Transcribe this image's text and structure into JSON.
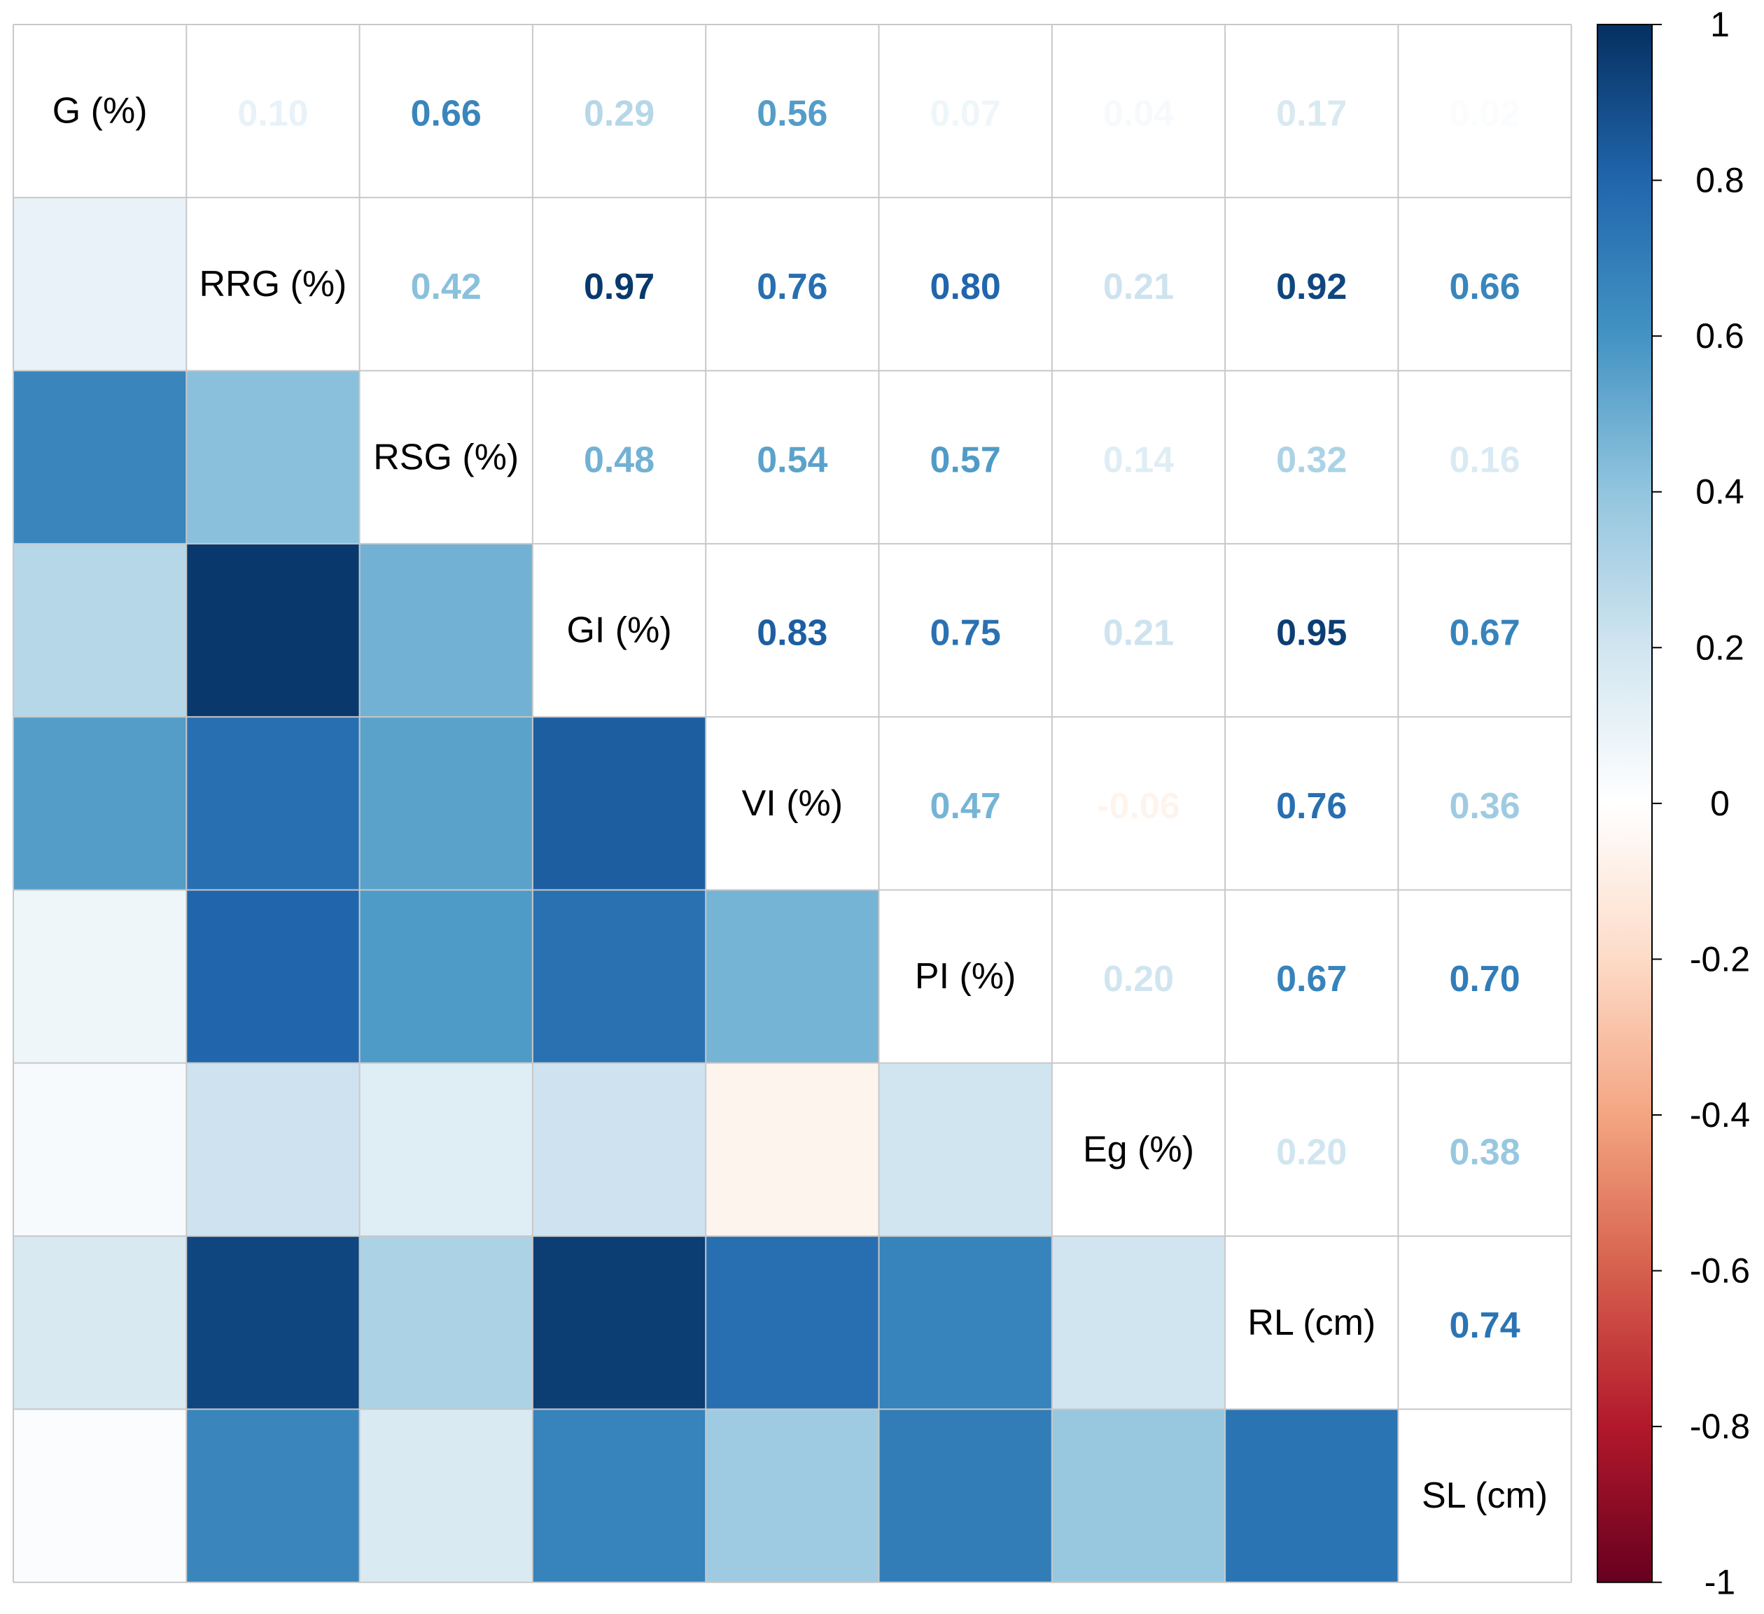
{
  "chart_data": {
    "type": "heatmap",
    "title": "",
    "variables": [
      "G (%)",
      "RRG (%)",
      "RSG (%)",
      "GI (%)",
      "VI (%)",
      "PI (%)",
      "Eg (%)",
      "RL (cm)",
      "SL (cm)"
    ],
    "matrix": [
      [
        1.0,
        0.1,
        0.66,
        0.29,
        0.56,
        0.07,
        0.04,
        0.17,
        0.02
      ],
      [
        0.1,
        1.0,
        0.42,
        0.97,
        0.76,
        0.8,
        0.21,
        0.92,
        0.66
      ],
      [
        0.66,
        0.42,
        1.0,
        0.48,
        0.54,
        0.57,
        0.14,
        0.32,
        0.16
      ],
      [
        0.29,
        0.97,
        0.48,
        1.0,
        0.83,
        0.75,
        0.21,
        0.95,
        0.67
      ],
      [
        0.56,
        0.76,
        0.54,
        0.83,
        1.0,
        0.47,
        -0.06,
        0.76,
        0.36
      ],
      [
        0.07,
        0.8,
        0.57,
        0.75,
        0.47,
        1.0,
        0.2,
        0.67,
        0.7
      ],
      [
        0.04,
        0.21,
        0.14,
        0.21,
        -0.06,
        0.2,
        1.0,
        0.2,
        0.38
      ],
      [
        0.17,
        0.92,
        0.32,
        0.95,
        0.76,
        0.67,
        0.2,
        1.0,
        0.74
      ],
      [
        0.02,
        0.66,
        0.16,
        0.67,
        0.36,
        0.7,
        0.38,
        0.74,
        1.0
      ]
    ],
    "lower_triangle": "colored squares",
    "upper_triangle": "coefficient numbers",
    "diagonal": "variable names",
    "colorbar": {
      "range": [
        -1,
        1
      ],
      "ticks": [
        "1",
        "0.8",
        "0.6",
        "0.4",
        "0.2",
        "0",
        "-0.2",
        "-0.4",
        "-0.6",
        "-0.8",
        "-1"
      ],
      "colors": [
        "#67001F",
        "#B2182B",
        "#D6604D",
        "#F4A582",
        "#FDDBC7",
        "#FFFFFF",
        "#D1E5F0",
        "#92C5DE",
        "#4393C3",
        "#2166AC",
        "#053061"
      ]
    }
  }
}
